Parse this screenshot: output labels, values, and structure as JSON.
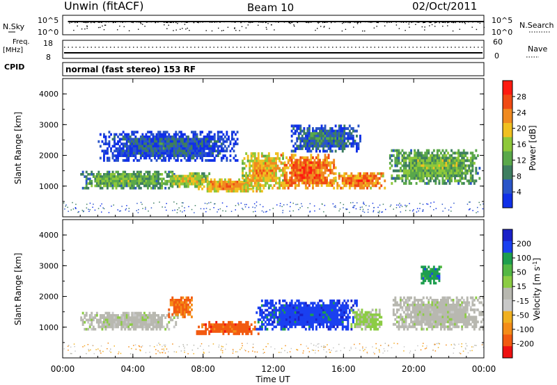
{
  "header": {
    "station": "Unwin (fitACF)",
    "beam": "Beam 10",
    "date": "02/Oct/2011"
  },
  "top_panels": {
    "nsky_label": "N.Sky",
    "nsky_top_tick": "10^5",
    "nsky_bottom_tick": "10^0",
    "nsearch_top_tick": "10^5",
    "nsearch_bottom_tick": "10^0",
    "nsearch_label": "N.Search",
    "freq_label": "Freq.",
    "freq_unit": "[MHz]",
    "freq_top_tick": "18",
    "freq_bottom_tick": "8",
    "nave_top_tick": "60",
    "nave_bottom_tick": "0",
    "nave_label": "Nave",
    "cpid_label": "CPID",
    "cpid_text": "normal (fast stereo) 153 RF"
  },
  "colors": {
    "power_scale": [
      "#1030e8",
      "#2a55c8",
      "#3e7e60",
      "#5aa84a",
      "#8ec83a",
      "#f0c020",
      "#f08a20",
      "#f04a14",
      "#ff1a10"
    ],
    "velocity_scale": [
      "#ee1010",
      "#f25a10",
      "#f48c18",
      "#f0b020",
      "#c8c8c8",
      "#b8b8b0",
      "#8ccc44",
      "#54b844",
      "#1e9e4e",
      "#1a40f0",
      "#1a20c8"
    ]
  },
  "chart_data": [
    {
      "type": "heatmap",
      "name": "power",
      "ylabel": "Slant Range [km]",
      "xlabel": "",
      "ylim": [
        0,
        4500
      ],
      "yticks": [
        "1000",
        "2000",
        "3000",
        "4000"
      ],
      "xticks": [
        "00:00",
        "04:00",
        "08:00",
        "12:00",
        "16:00",
        "20:00",
        "00:00"
      ],
      "colorbar_label": "Power [dB]",
      "colorbar_ticks": [
        "4",
        "8",
        "12",
        "16",
        "20",
        "24",
        "28"
      ],
      "colorbar_range": [
        0,
        30
      ],
      "regions": [
        {
          "t0": 1.0,
          "t1": 6.4,
          "r0": 900,
          "r1": 1500,
          "level": 14
        },
        {
          "t0": 5.8,
          "t1": 8.4,
          "r0": 950,
          "r1": 1450,
          "level": 18
        },
        {
          "t0": 7.6,
          "t1": 11.4,
          "r0": 800,
          "r1": 1250,
          "level": 24
        },
        {
          "t0": 10.2,
          "t1": 12.8,
          "r0": 900,
          "r1": 2100,
          "level": 22
        },
        {
          "t0": 12.4,
          "t1": 15.6,
          "r0": 900,
          "r1": 2050,
          "level": 27
        },
        {
          "t0": 15.4,
          "t1": 18.4,
          "r0": 900,
          "r1": 1450,
          "level": 26
        },
        {
          "t0": 18.6,
          "t1": 23.8,
          "r0": 1050,
          "r1": 2200,
          "level": 15
        },
        {
          "t0": 2.0,
          "t1": 10.0,
          "r0": 1800,
          "r1": 2800,
          "level": 6
        },
        {
          "t0": 13.0,
          "t1": 17.0,
          "r0": 2100,
          "r1": 3000,
          "level": 8
        }
      ]
    },
    {
      "type": "heatmap",
      "name": "velocity",
      "ylabel": "Slant Range [km]",
      "xlabel": "Time UT",
      "ylim": [
        0,
        4500
      ],
      "yticks": [
        "1000",
        "2000",
        "3000",
        "4000"
      ],
      "xticks": [
        "00:00",
        "04:00",
        "08:00",
        "12:00",
        "16:00",
        "20:00",
        "00:00"
      ],
      "colorbar_label": "Velocity [m s^-1]",
      "colorbar_ticks": [
        "200",
        "100",
        "50",
        "15",
        "-15",
        "-50",
        "-100",
        "-200"
      ],
      "colorbar_range": [
        -250,
        250
      ],
      "regions": [
        {
          "t0": 1.0,
          "t1": 6.6,
          "r0": 900,
          "r1": 1500,
          "value": 0
        },
        {
          "t0": 6.0,
          "t1": 7.4,
          "r0": 1300,
          "r1": 2000,
          "value": -180
        },
        {
          "t0": 7.6,
          "t1": 11.2,
          "r0": 750,
          "r1": 1200,
          "value": -200
        },
        {
          "t0": 11.0,
          "t1": 16.8,
          "r0": 900,
          "r1": 1900,
          "value": 200
        },
        {
          "t0": 16.4,
          "t1": 18.2,
          "r0": 900,
          "r1": 1600,
          "value": 40
        },
        {
          "t0": 18.8,
          "t1": 24.0,
          "r0": 900,
          "r1": 2000,
          "value": 0
        },
        {
          "t0": 20.4,
          "t1": 21.6,
          "r0": 2400,
          "r1": 3000,
          "value": 150
        }
      ]
    }
  ]
}
